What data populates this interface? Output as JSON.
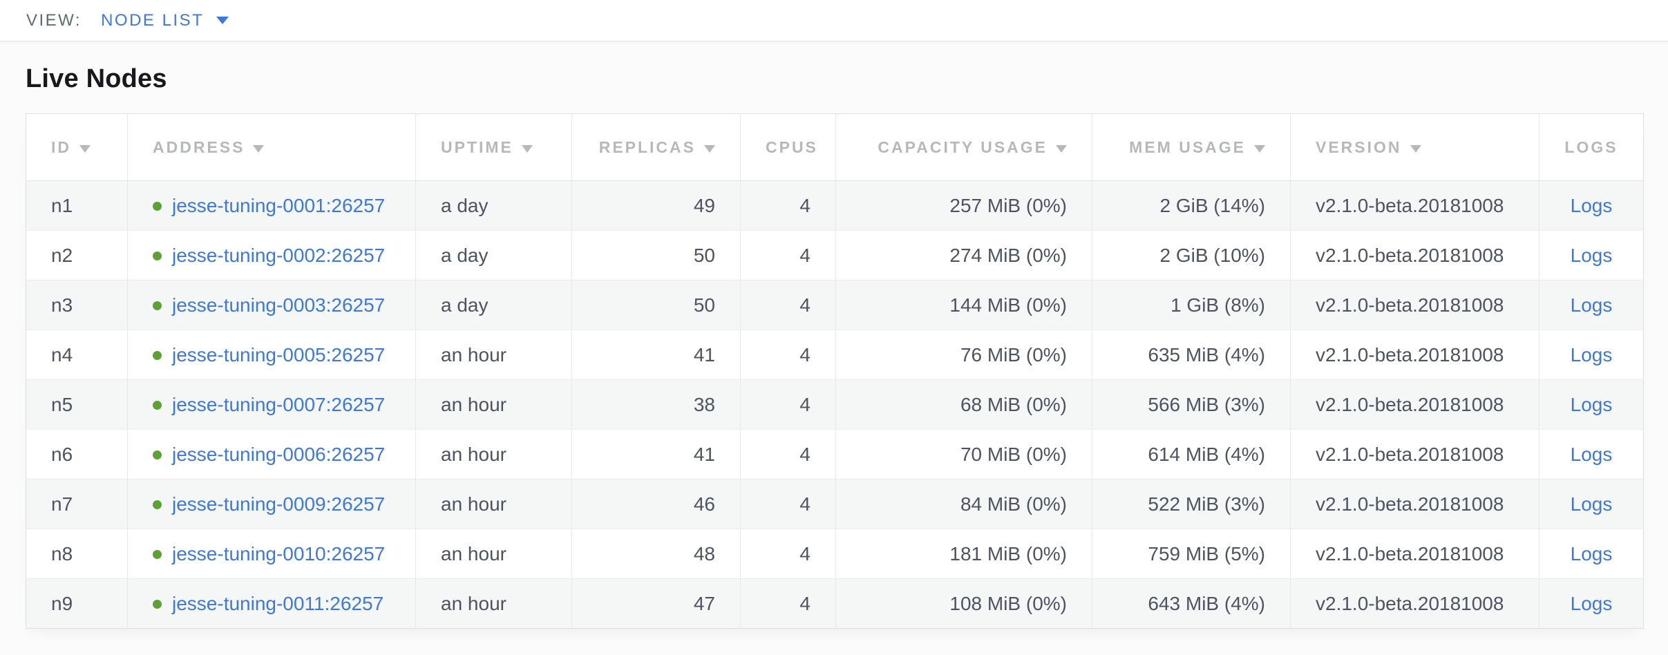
{
  "topbar": {
    "view_label": "VIEW:",
    "view_value": "NODE LIST"
  },
  "page": {
    "title": "Live Nodes"
  },
  "colors": {
    "link_blue": "#3e78dc",
    "healthy_green": "#5ca136",
    "header_gray": "#b6b8bb",
    "cell_text": "#4d5460"
  },
  "table": {
    "columns": [
      {
        "key": "id",
        "label": "ID",
        "sortable": true,
        "align": "left"
      },
      {
        "key": "address",
        "label": "ADDRESS",
        "sortable": true,
        "align": "left"
      },
      {
        "key": "uptime",
        "label": "UPTIME",
        "sortable": true,
        "align": "left"
      },
      {
        "key": "replicas",
        "label": "REPLICAS",
        "sortable": true,
        "align": "right"
      },
      {
        "key": "cpus",
        "label": "CPUS",
        "sortable": false,
        "align": "right"
      },
      {
        "key": "capacity",
        "label": "CAPACITY USAGE",
        "sortable": true,
        "align": "right"
      },
      {
        "key": "mem",
        "label": "MEM USAGE",
        "sortable": true,
        "align": "right"
      },
      {
        "key": "version",
        "label": "VERSION",
        "sortable": true,
        "align": "left"
      },
      {
        "key": "logs",
        "label": "LOGS",
        "sortable": false,
        "align": "center"
      }
    ],
    "rows": [
      {
        "id": "n1",
        "address": "jesse-tuning-0001:26257",
        "uptime": "a day",
        "replicas": "49",
        "cpus": "4",
        "capacity": "257 MiB (0%)",
        "mem": "2 GiB (14%)",
        "version": "v2.1.0-beta.20181008",
        "logs": "Logs"
      },
      {
        "id": "n2",
        "address": "jesse-tuning-0002:26257",
        "uptime": "a day",
        "replicas": "50",
        "cpus": "4",
        "capacity": "274 MiB (0%)",
        "mem": "2 GiB (10%)",
        "version": "v2.1.0-beta.20181008",
        "logs": "Logs"
      },
      {
        "id": "n3",
        "address": "jesse-tuning-0003:26257",
        "uptime": "a day",
        "replicas": "50",
        "cpus": "4",
        "capacity": "144 MiB (0%)",
        "mem": "1 GiB (8%)",
        "version": "v2.1.0-beta.20181008",
        "logs": "Logs"
      },
      {
        "id": "n4",
        "address": "jesse-tuning-0005:26257",
        "uptime": "an hour",
        "replicas": "41",
        "cpus": "4",
        "capacity": "76 MiB (0%)",
        "mem": "635 MiB (4%)",
        "version": "v2.1.0-beta.20181008",
        "logs": "Logs"
      },
      {
        "id": "n5",
        "address": "jesse-tuning-0007:26257",
        "uptime": "an hour",
        "replicas": "38",
        "cpus": "4",
        "capacity": "68 MiB (0%)",
        "mem": "566 MiB (3%)",
        "version": "v2.1.0-beta.20181008",
        "logs": "Logs"
      },
      {
        "id": "n6",
        "address": "jesse-tuning-0006:26257",
        "uptime": "an hour",
        "replicas": "41",
        "cpus": "4",
        "capacity": "70 MiB (0%)",
        "mem": "614 MiB (4%)",
        "version": "v2.1.0-beta.20181008",
        "logs": "Logs"
      },
      {
        "id": "n7",
        "address": "jesse-tuning-0009:26257",
        "uptime": "an hour",
        "replicas": "46",
        "cpus": "4",
        "capacity": "84 MiB (0%)",
        "mem": "522 MiB (3%)",
        "version": "v2.1.0-beta.20181008",
        "logs": "Logs"
      },
      {
        "id": "n8",
        "address": "jesse-tuning-0010:26257",
        "uptime": "an hour",
        "replicas": "48",
        "cpus": "4",
        "capacity": "181 MiB (0%)",
        "mem": "759 MiB (5%)",
        "version": "v2.1.0-beta.20181008",
        "logs": "Logs"
      },
      {
        "id": "n9",
        "address": "jesse-tuning-0011:26257",
        "uptime": "an hour",
        "replicas": "47",
        "cpus": "4",
        "capacity": "108 MiB (0%)",
        "mem": "643 MiB (4%)",
        "version": "v2.1.0-beta.20181008",
        "logs": "Logs"
      }
    ]
  }
}
